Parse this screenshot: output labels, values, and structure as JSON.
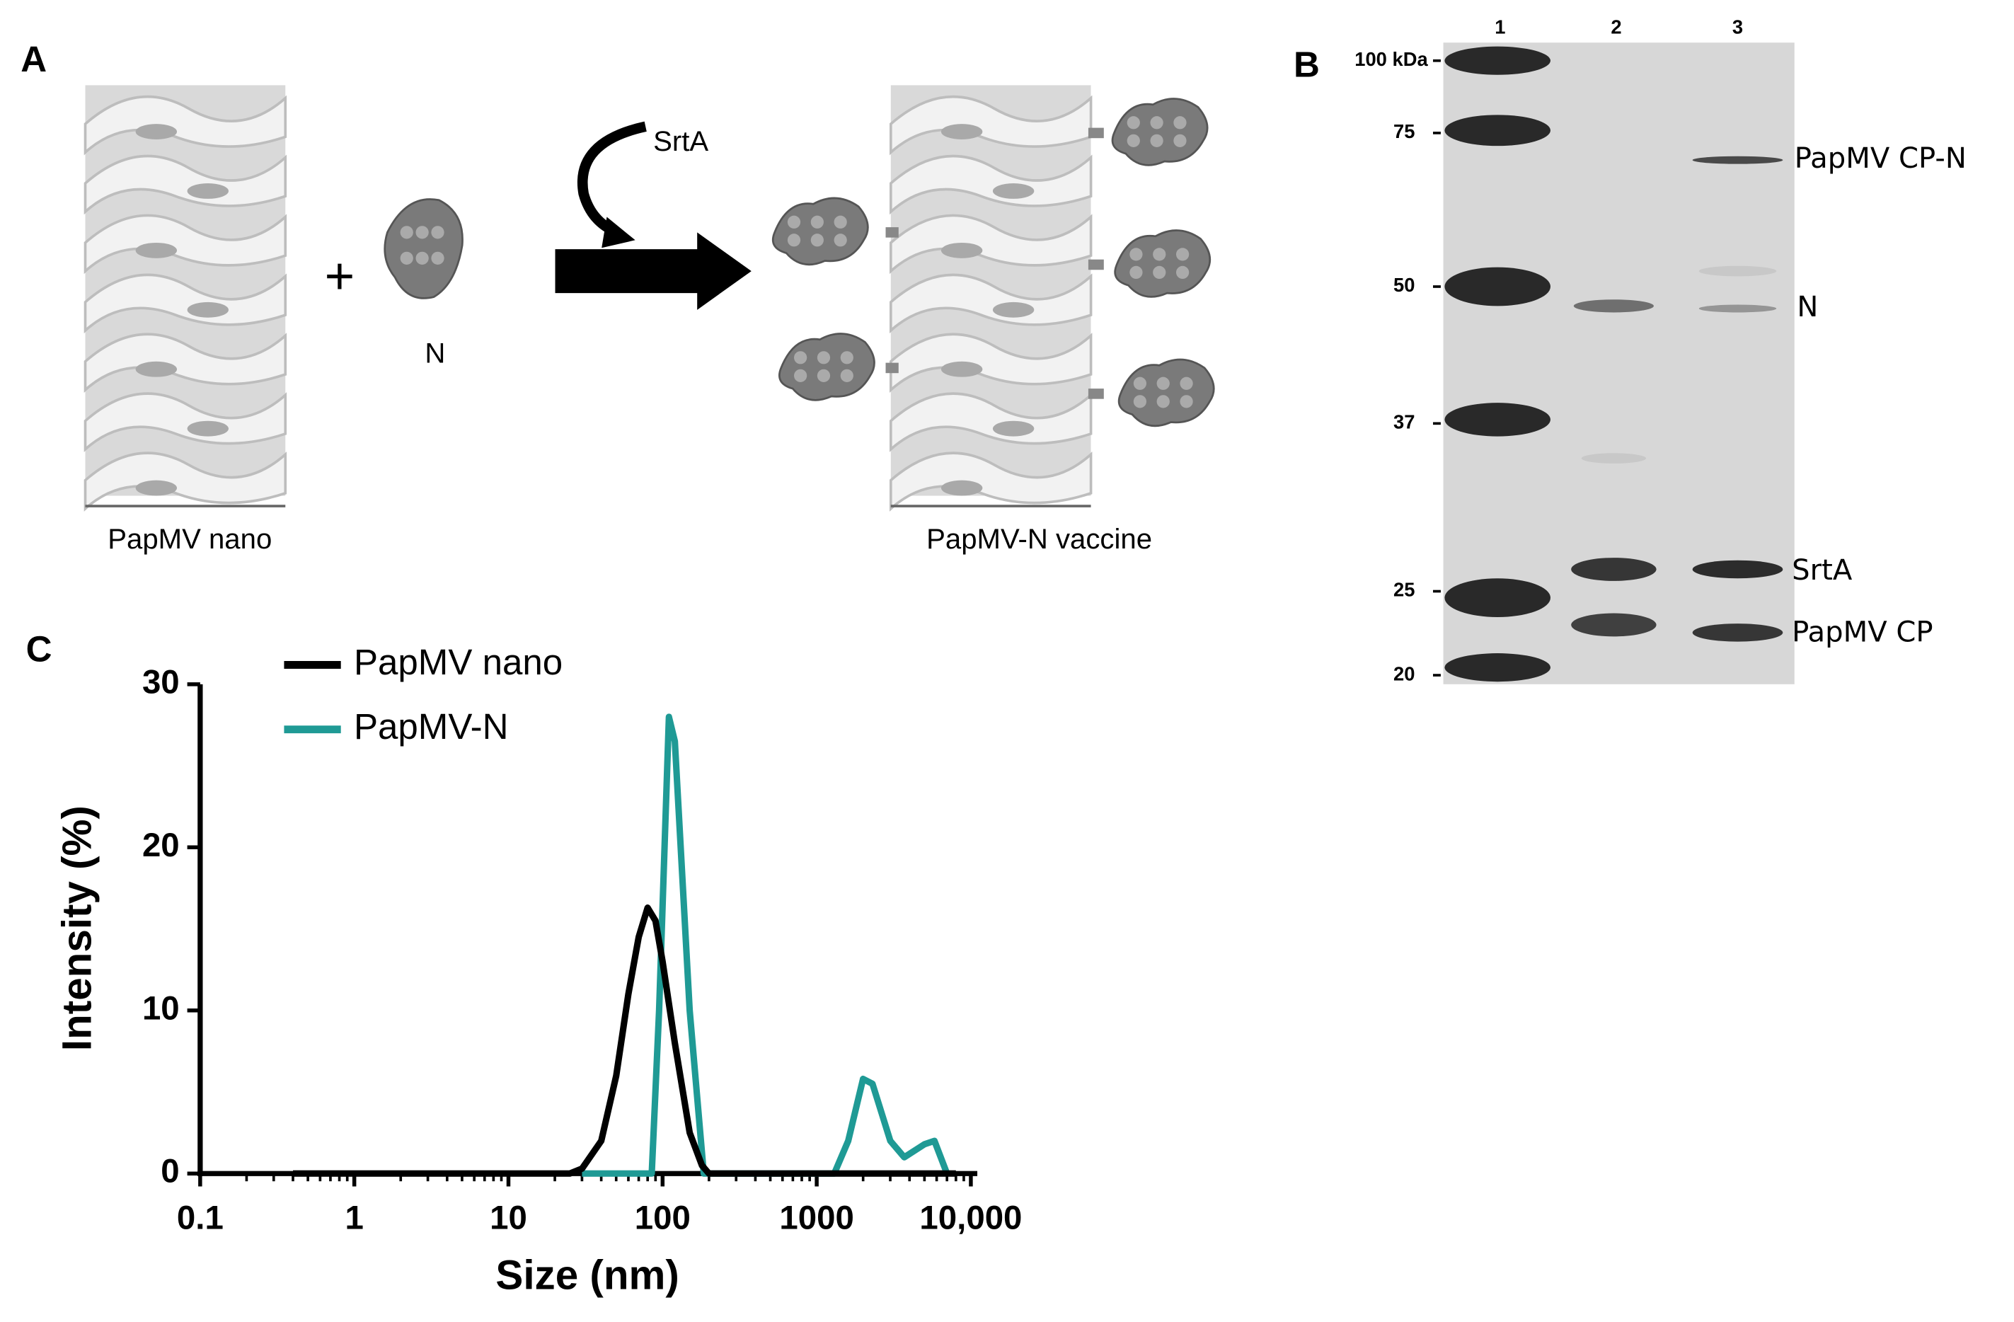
{
  "panels": {
    "a": "A",
    "b": "B",
    "c": "C"
  },
  "panel_a": {
    "left_label": "PapMV nano",
    "plus": "+",
    "protein_label": "N",
    "enzyme_label": "SrtA",
    "right_label": "PapMV-N vaccine"
  },
  "panel_b": {
    "lanes": [
      "1",
      "2",
      "3"
    ],
    "markers": [
      "100 kDa",
      "75",
      "50",
      "37",
      "25",
      "20"
    ],
    "band_labels": [
      "PapMV CP-N",
      "N",
      "SrtA",
      "PapMV CP"
    ]
  },
  "chart_data": {
    "type": "line",
    "x_label": "Size (nm)",
    "y_label": "Intensity (%)",
    "x_scale": "log",
    "x_minor_ticks": true,
    "legend": "upper left",
    "xlim": [
      0.1,
      10000
    ],
    "xticks": [
      0.1,
      1,
      10,
      100,
      1000,
      {
        "value": 10000,
        "label": "10,000"
      }
    ],
    "ylim": [
      0,
      30
    ],
    "yticks": [
      0,
      10,
      20,
      30
    ],
    "series": [
      {
        "name": "PapMV-N",
        "color": "#1f9a95",
        "x": [
          30,
          85,
          95,
          110,
          120,
          150,
          185,
          1300,
          1600,
          2000,
          2300,
          3000,
          3700,
          5000,
          5800,
          7000
        ],
        "values": [
          0,
          0,
          10,
          28,
          26.5,
          10,
          0,
          0,
          2,
          5.8,
          5.5,
          2,
          1,
          1.8,
          2,
          0
        ]
      },
      {
        "name": "PapMV nano",
        "color": "#000000",
        "x": [
          0.4,
          1,
          10,
          25,
          30,
          40,
          50,
          60,
          70,
          80,
          90,
          100,
          120,
          150,
          180,
          200,
          1000,
          8000
        ],
        "values": [
          0,
          0,
          0,
          0,
          0.3,
          2,
          6,
          11,
          14.5,
          16.3,
          15.5,
          13,
          8,
          2.5,
          0.5,
          0,
          0,
          0
        ]
      }
    ]
  }
}
